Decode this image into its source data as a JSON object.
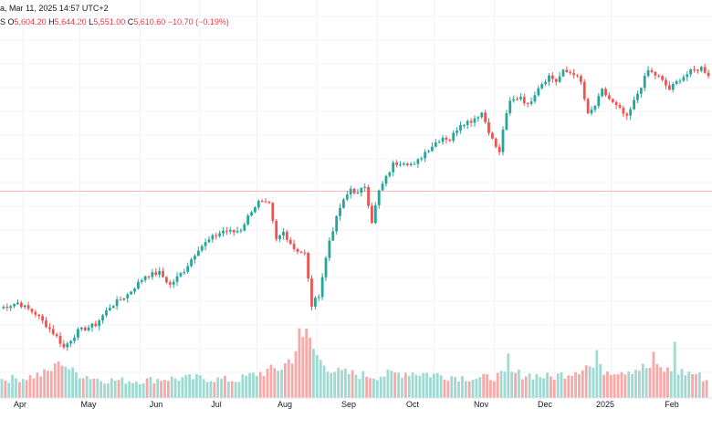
{
  "header": {
    "title_fragment": "a, Mar 11, 2025 14:57 UTC+2",
    "ohlc_prefix": "S",
    "open_key": "O",
    "open": "5,604.20",
    "high_key": "H",
    "high": "5,644.20",
    "low_key": "L",
    "low": "5,551.00",
    "close_key": "C",
    "close": "5,610.60",
    "change": "−10.70 (−0.19%)"
  },
  "colors": {
    "up": "#26a69a",
    "down": "#ef5350",
    "vol_up": "#9fd9d2",
    "vol_down": "#f7a9a7",
    "grid": "#f0f3fa",
    "price_line": "#f7b7b6",
    "text": "#131722"
  },
  "chart_data": {
    "type": "candlestick",
    "title": "",
    "xlabel": "",
    "ylabel": "",
    "ylim": [
      4920,
      6180
    ],
    "grid": true,
    "last_price_line": 5610.6,
    "x_tick_labels": [
      "Apr",
      "May",
      "Jun",
      "Jul",
      "Aug",
      "Sep",
      "Oct",
      "Nov",
      "Dec",
      "2025",
      "Feb"
    ],
    "price_path": [
      [
        0,
        5180
      ],
      [
        5,
        5200
      ],
      [
        10,
        5160
      ],
      [
        16,
        5075
      ],
      [
        18,
        5035
      ],
      [
        22,
        5095
      ],
      [
        27,
        5120
      ],
      [
        31,
        5185
      ],
      [
        36,
        5230
      ],
      [
        41,
        5300
      ],
      [
        45,
        5310
      ],
      [
        48,
        5265
      ],
      [
        52,
        5320
      ],
      [
        56,
        5400
      ],
      [
        60,
        5440
      ],
      [
        63,
        5465
      ],
      [
        66,
        5460
      ],
      [
        68,
        5470
      ],
      [
        71,
        5540
      ],
      [
        73,
        5570
      ],
      [
        76,
        5560
      ],
      [
        78,
        5430
      ],
      [
        80,
        5460
      ],
      [
        83,
        5400
      ],
      [
        86,
        5380
      ],
      [
        88,
        5190
      ],
      [
        90,
        5230
      ],
      [
        93,
        5430
      ],
      [
        96,
        5550
      ],
      [
        99,
        5620
      ],
      [
        101,
        5600
      ],
      [
        103,
        5630
      ],
      [
        105,
        5500
      ],
      [
        107,
        5610
      ],
      [
        111,
        5710
      ],
      [
        114,
        5720
      ],
      [
        117,
        5705
      ],
      [
        120,
        5755
      ],
      [
        123,
        5790
      ],
      [
        125,
        5810
      ],
      [
        127,
        5800
      ],
      [
        130,
        5860
      ],
      [
        133,
        5870
      ],
      [
        136,
        5900
      ],
      [
        139,
        5800
      ],
      [
        141,
        5750
      ],
      [
        142,
        5840
      ],
      [
        144,
        5940
      ],
      [
        147,
        5960
      ],
      [
        149,
        5925
      ],
      [
        152,
        5995
      ],
      [
        155,
        6035
      ],
      [
        157,
        6015
      ],
      [
        159,
        6050
      ],
      [
        162,
        6045
      ],
      [
        164,
        6010
      ],
      [
        166,
        5890
      ],
      [
        168,
        5925
      ],
      [
        170,
        5980
      ],
      [
        173,
        5935
      ],
      [
        175,
        5910
      ],
      [
        177,
        5880
      ],
      [
        180,
        5970
      ],
      [
        183,
        6055
      ],
      [
        186,
        6030
      ],
      [
        189,
        5985
      ],
      [
        192,
        6025
      ],
      [
        195,
        6050
      ],
      [
        198,
        6065
      ],
      [
        200,
        6040
      ]
    ],
    "volume_path": [
      [
        0,
        3.1
      ],
      [
        6,
        3.3
      ],
      [
        12,
        4.0
      ],
      [
        16,
        5.3
      ],
      [
        17,
        6.2
      ],
      [
        20,
        4.3
      ],
      [
        28,
        3.0
      ],
      [
        38,
        2.8
      ],
      [
        46,
        3.2
      ],
      [
        56,
        3.3
      ],
      [
        66,
        2.9
      ],
      [
        72,
        4.0
      ],
      [
        79,
        5.0
      ],
      [
        82,
        6.8
      ],
      [
        84,
        9.4
      ],
      [
        85,
        11.8
      ],
      [
        86,
        10.0
      ],
      [
        88,
        8.0
      ],
      [
        90,
        6.0
      ],
      [
        95,
        4.2
      ],
      [
        105,
        3.6
      ],
      [
        115,
        4.3
      ],
      [
        125,
        3.7
      ],
      [
        135,
        3.2
      ],
      [
        145,
        4.0
      ],
      [
        150,
        3.8
      ],
      [
        155,
        3.4
      ],
      [
        160,
        4.2
      ],
      [
        162,
        4.6
      ],
      [
        165,
        5.4
      ],
      [
        168,
        4.7
      ],
      [
        175,
        4.6
      ],
      [
        182,
        5.0
      ],
      [
        190,
        4.4
      ],
      [
        196,
        4.0
      ],
      [
        200,
        2.6
      ]
    ],
    "volume_spikes": [
      [
        16,
        6.2
      ],
      [
        84,
        11.8
      ],
      [
        85,
        10.3
      ],
      [
        143,
        7.5
      ],
      [
        168,
        8.1
      ],
      [
        184,
        7.8
      ],
      [
        190,
        9.5
      ]
    ],
    "volume_max": 12.5
  }
}
